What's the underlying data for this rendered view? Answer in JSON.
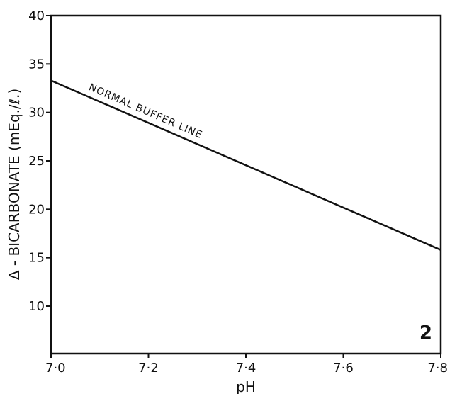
{
  "chart_data": {
    "type": "line",
    "title": "",
    "xlabel": "pH",
    "ylabel": "Δ - BICARBONATE (mEq./ℓ.)",
    "xlim": [
      7.0,
      7.8
    ],
    "ylim": [
      5,
      40
    ],
    "x_ticks": [
      {
        "value": 7.0,
        "label": "7·0"
      },
      {
        "value": 7.2,
        "label": "7·2"
      },
      {
        "value": 7.4,
        "label": "7·4"
      },
      {
        "value": 7.6,
        "label": "7·6"
      },
      {
        "value": 7.8,
        "label": "7·8"
      }
    ],
    "y_ticks": [
      {
        "value": 10,
        "label": "10"
      },
      {
        "value": 15,
        "label": "15"
      },
      {
        "value": 20,
        "label": "20"
      },
      {
        "value": 25,
        "label": "25"
      },
      {
        "value": 30,
        "label": "30"
      },
      {
        "value": 35,
        "label": "35"
      },
      {
        "value": 40,
        "label": "40"
      }
    ],
    "grid": false,
    "series": [
      {
        "name": "NORMAL BUFFER LINE",
        "x": [
          7.0,
          7.8
        ],
        "y": [
          33.3,
          15.8
        ]
      }
    ],
    "panel_label": "2"
  },
  "colors": {
    "ink": "#111111",
    "background": "#ffffff"
  }
}
